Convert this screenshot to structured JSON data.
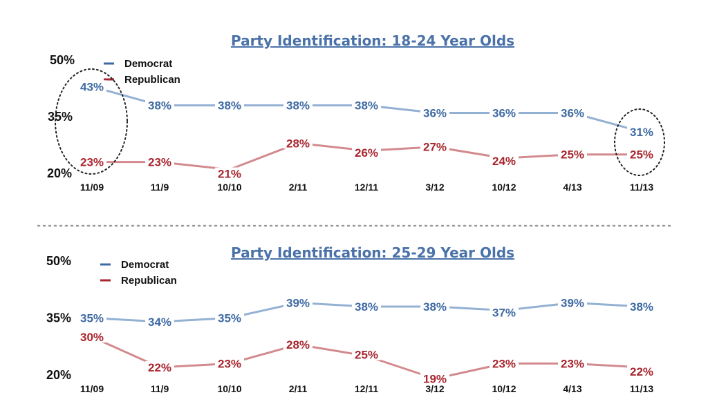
{
  "colors": {
    "democrat_line": "#93b1d3",
    "democrat_label": "#3e6aa3",
    "republican_line": "#d38a8e",
    "republican_label": "#a8262e",
    "title": "#4a72a8",
    "divider": "#9a9a9a"
  },
  "chart_data": [
    {
      "type": "line",
      "title": "Party Identification: 18-24 Year Olds",
      "categories": [
        "11/09",
        "11/9",
        "10/10",
        "2/11",
        "12/11",
        "3/12",
        "10/12",
        "4/13",
        "11/13"
      ],
      "y_ticks": [
        "50%",
        "35%",
        "20%"
      ],
      "ylim": [
        20,
        50
      ],
      "legend_position": "top-left",
      "series": [
        {
          "name": "Democrat",
          "values": [
            43,
            38,
            38,
            38,
            38,
            36,
            36,
            36,
            31
          ],
          "labels": [
            "43%",
            "38%",
            "38%",
            "38%",
            "38%",
            "36%",
            "36%",
            "36%",
            "31%"
          ]
        },
        {
          "name": "Republican",
          "values": [
            23,
            23,
            21,
            28,
            26,
            27,
            24,
            25,
            25
          ],
          "labels": [
            "23%",
            "23%",
            "21%",
            "28%",
            "26%",
            "27%",
            "24%",
            "25%",
            "25%"
          ]
        }
      ],
      "highlighted_categories": [
        "11/09",
        "11/13"
      ]
    },
    {
      "type": "line",
      "title": "Party Identification: 25-29 Year Olds",
      "categories": [
        "11/09",
        "11/9",
        "10/10",
        "2/11",
        "12/11",
        "3/12",
        "10/12",
        "4/13",
        "11/13"
      ],
      "y_ticks": [
        "50%",
        "35%",
        "20%"
      ],
      "ylim": [
        20,
        50
      ],
      "legend_position": "top-left",
      "series": [
        {
          "name": "Democrat",
          "values": [
            35,
            34,
            35,
            39,
            38,
            38,
            37,
            39,
            38
          ],
          "labels": [
            "35%",
            "34%",
            "35%",
            "39%",
            "38%",
            "38%",
            "37%",
            "39%",
            "38%"
          ]
        },
        {
          "name": "Republican",
          "values": [
            30,
            22,
            23,
            28,
            25,
            19,
            23,
            23,
            22
          ],
          "labels": [
            "30%",
            "22%",
            "23%",
            "28%",
            "25%",
            "19%",
            "23%",
            "23%",
            "22%"
          ]
        }
      ]
    }
  ]
}
